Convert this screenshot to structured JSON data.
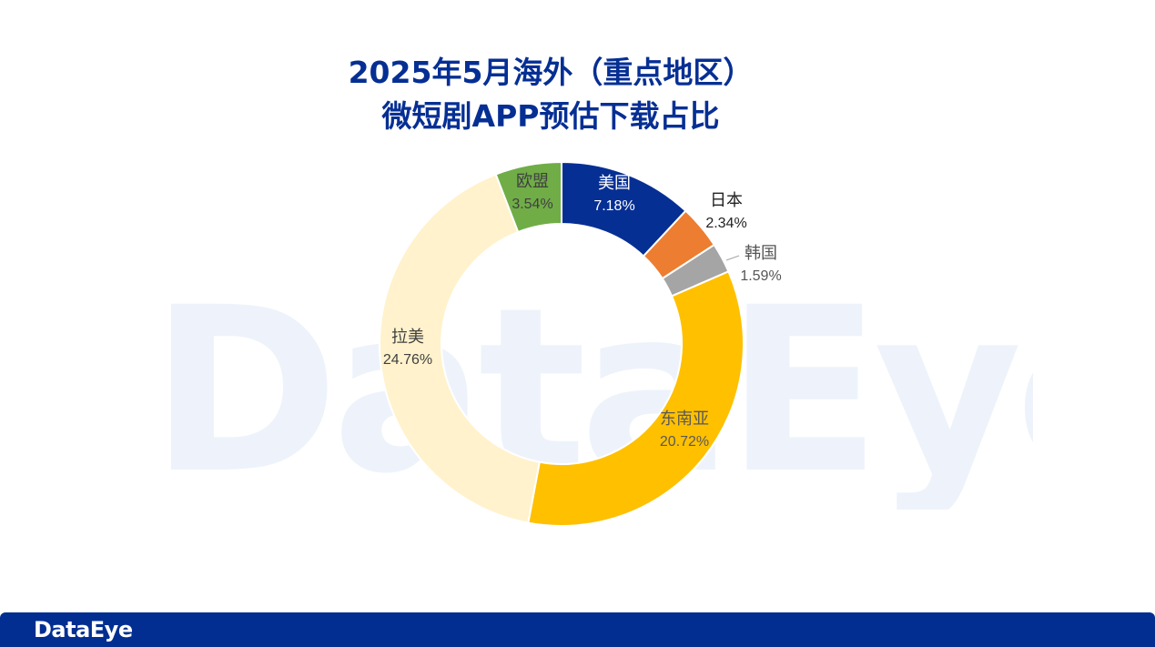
{
  "watermark": "DataEye",
  "title_line1": "2025年5月海外（重点地区）",
  "title_line2": "微短剧APP预估下载占比",
  "footer_logo": "DataEye",
  "colors": {
    "title": "#062f94",
    "footer_bg": "#022e91"
  },
  "chart_data": {
    "type": "pie",
    "donut": true,
    "title": "2025年5月海外（重点地区） 微短剧APP预估下载占比",
    "unit": "%",
    "slices": [
      {
        "label": "美国",
        "value": 7.18,
        "value_label": "7.18%",
        "color": "#062f94",
        "label_color": "#ffffff"
      },
      {
        "label": "日本",
        "value": 2.34,
        "value_label": "2.34%",
        "color": "#ed7d31",
        "label_color": "#222222"
      },
      {
        "label": "韩国",
        "value": 1.59,
        "value_label": "1.59%",
        "color": "#a5a5a5",
        "label_color": "#555555"
      },
      {
        "label": "东南亚",
        "value": 20.72,
        "value_label": "20.72%",
        "color": "#ffc000",
        "label_color": "#595959"
      },
      {
        "label": "拉美",
        "value": 24.76,
        "value_label": "24.76%",
        "color": "#fff2cc",
        "label_color": "#404040"
      },
      {
        "label": "欧盟",
        "value": 3.54,
        "value_label": "3.54%",
        "color": "#70ad47",
        "label_color": "#404040"
      }
    ]
  }
}
